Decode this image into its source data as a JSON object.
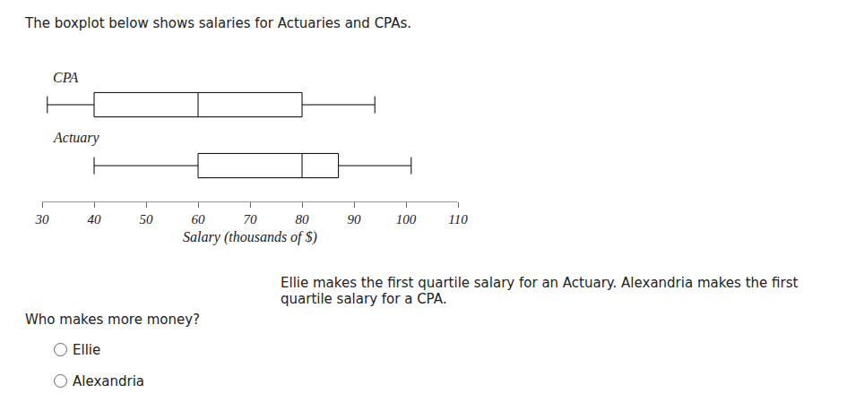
{
  "intro": "The boxplot below shows salaries for Actuaries and CPAs.",
  "question": "Ellie makes the first quartile salary for an Actuary. Alexandria makes the first quartile salary for a CPA.",
  "prompt": "Who makes more money?",
  "options": [
    "Ellie",
    "Alexandria"
  ],
  "chart_data": {
    "type": "box",
    "orientation": "horizontal",
    "xlabel": "Salary (thousands of $)",
    "xlim": [
      30,
      110
    ],
    "xticks": [
      30,
      40,
      50,
      60,
      70,
      80,
      90,
      100,
      110
    ],
    "tick_labels": "x",
    "grid": false,
    "series": [
      {
        "name": "CPA",
        "color": "#000000",
        "min": 31,
        "q1": 40,
        "median": 60,
        "q3": 80,
        "max": 94
      },
      {
        "name": "Actuary",
        "color": "#000000",
        "min": 40,
        "q1": 60,
        "median": 80,
        "q3": 87,
        "max": 101
      }
    ]
  }
}
